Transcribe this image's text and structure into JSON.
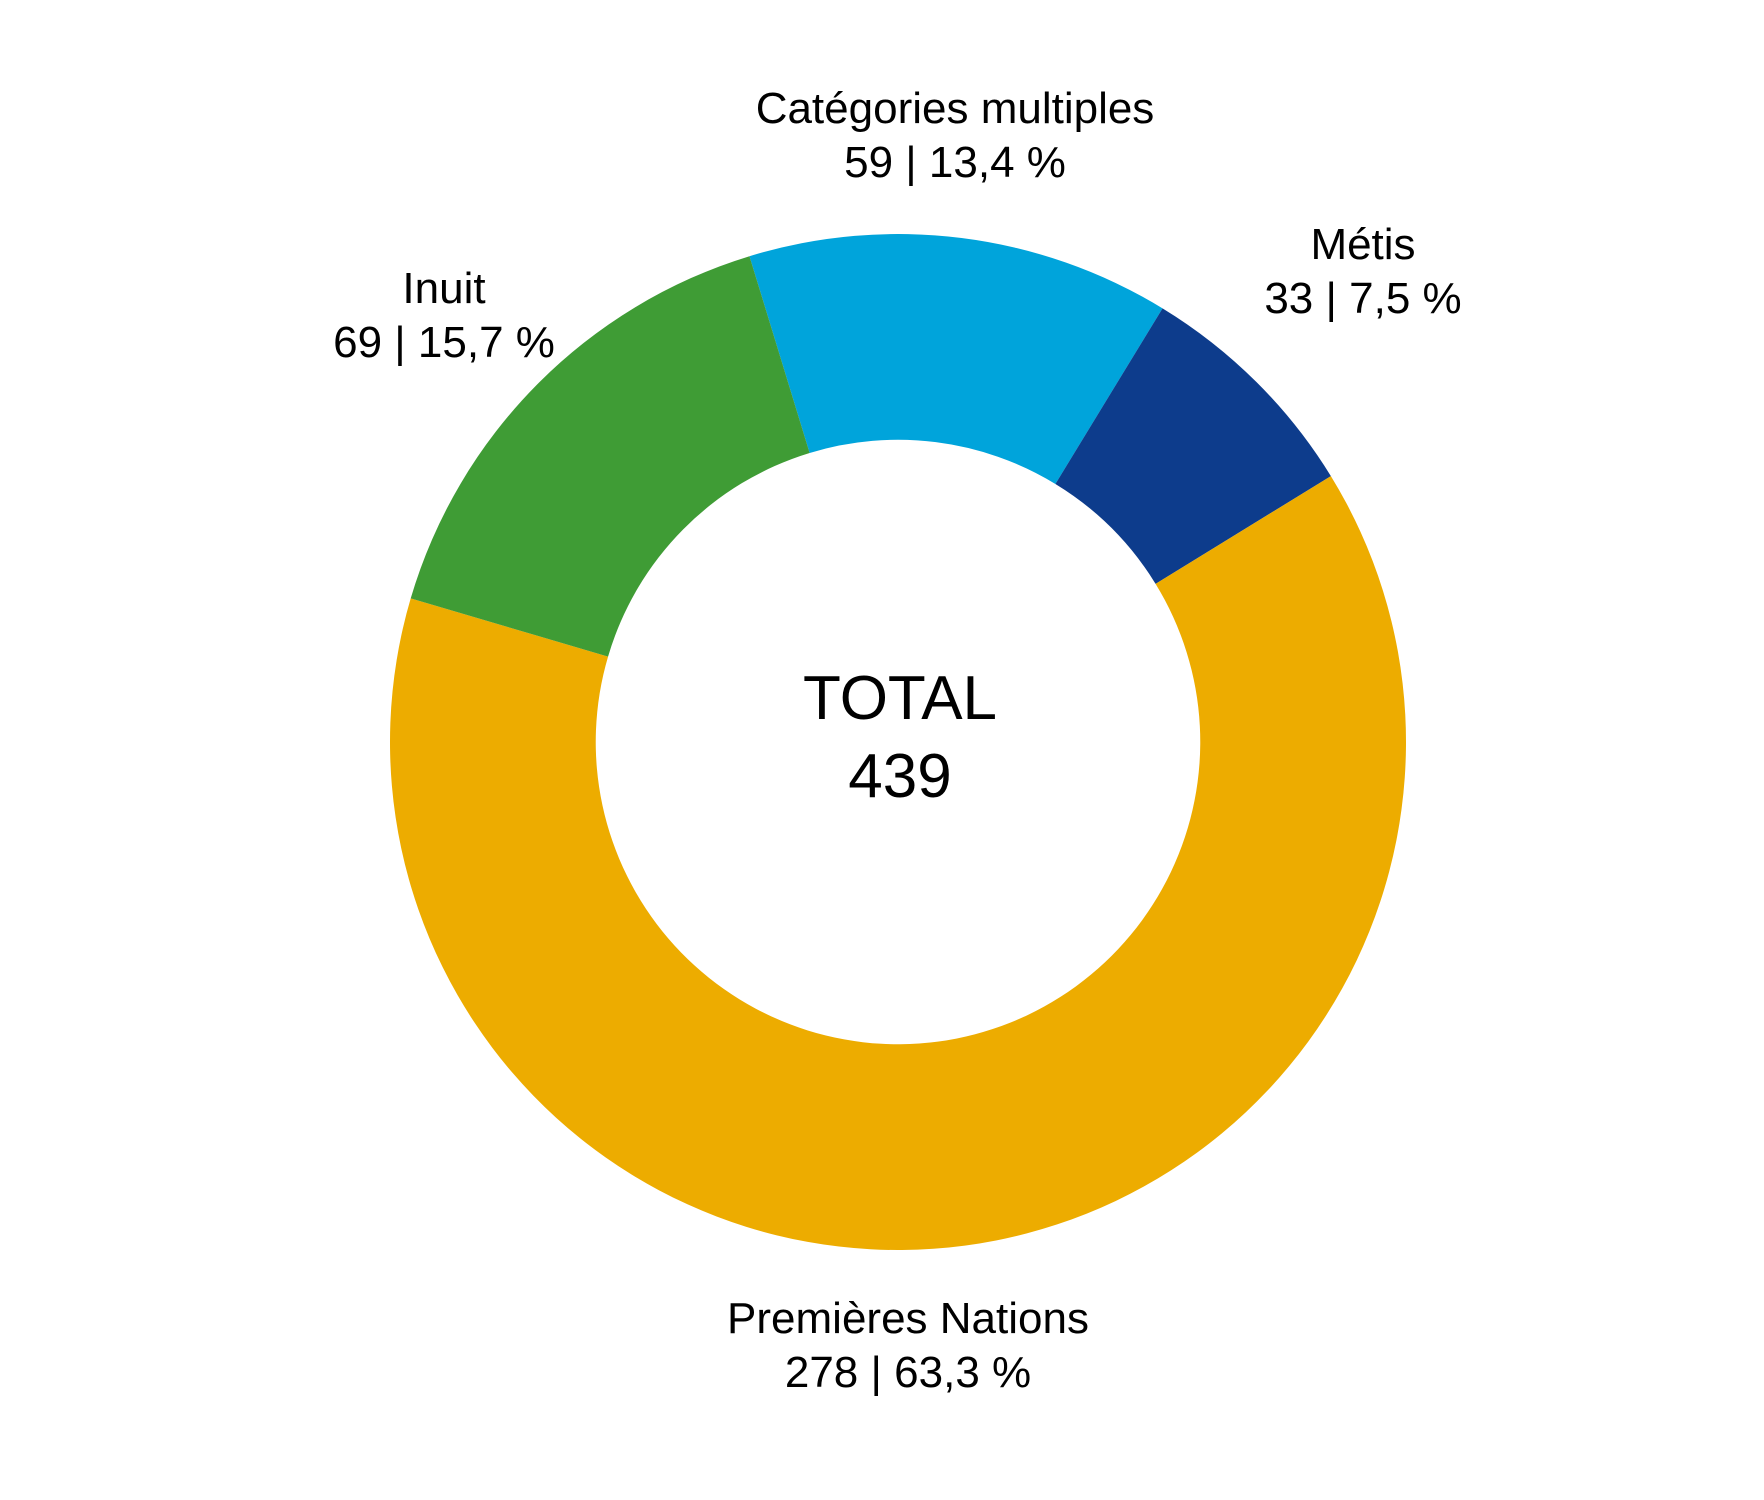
{
  "chart_data": {
    "type": "pie",
    "subtype": "donut",
    "title": "",
    "total": 439,
    "center_label": {
      "title": "TOTAL",
      "value": "439"
    },
    "start_angle_deg": -17,
    "inner_radius_ratio": 0.595,
    "legend_position": "around-slices",
    "separator": "|",
    "segments": [
      {
        "id": "categories-multiples",
        "label": "Catégories multiples",
        "value": 59,
        "percent": "13,4 %",
        "value_line": "59 | 13,4 %",
        "color": "#00A4DB"
      },
      {
        "id": "metis",
        "label": "Métis",
        "value": 33,
        "percent": "7,5 %",
        "value_line": "33 | 7,5 %",
        "color": "#0D3C8C"
      },
      {
        "id": "premieres-nations",
        "label": "Premières Nations",
        "value": 278,
        "percent": "63,3 %",
        "value_line": "278 | 63,3 %",
        "color": "#EDAC00"
      },
      {
        "id": "inuit",
        "label": "Inuit",
        "value": 69,
        "percent": "15,7 %",
        "value_line": "69 | 15,7 %",
        "color": "#3F9C35"
      }
    ]
  }
}
